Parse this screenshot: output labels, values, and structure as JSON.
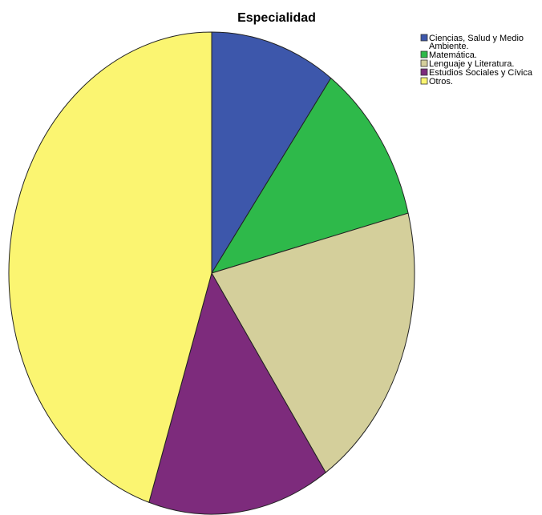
{
  "chart_data": {
    "type": "pie",
    "title": "Especialidad",
    "start_angle_deg": 0,
    "direction": "clockwise",
    "legend_position": "top-right",
    "slices": [
      {
        "label": [
          "Ciencias, Salud y Medio",
          "Ambiente."
        ],
        "value": 10.0,
        "color": "#3d57ab"
      },
      {
        "label": [
          "Matemática."
        ],
        "value": 11.0,
        "color": "#2eb94a"
      },
      {
        "label": [
          "Lenguaje y Literatura."
        ],
        "value": 19.5,
        "color": "#d4cf9b"
      },
      {
        "label": [
          "Estudios Sociales y Cívica"
        ],
        "value": 14.5,
        "color": "#7d2b7c"
      },
      {
        "label": [
          "Otros."
        ],
        "value": 45.0,
        "color": "#fbf571"
      }
    ]
  }
}
